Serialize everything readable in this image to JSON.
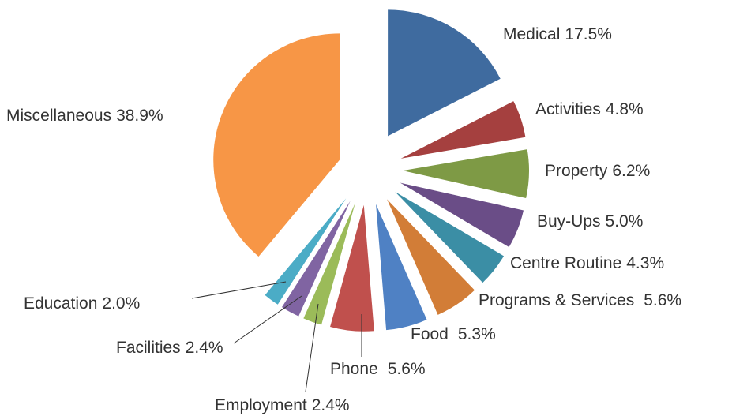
{
  "chart_data": {
    "type": "pie",
    "categories": [
      "Medical",
      "Activities",
      "Property",
      "Buy-Ups",
      "Centre Routine",
      "Programs & Services",
      "Food",
      "Phone",
      "Employment",
      "Facilities",
      "Education",
      "Miscellaneous"
    ],
    "values": [
      17.5,
      4.8,
      6.2,
      5.0,
      4.3,
      5.6,
      5.3,
      5.6,
      2.4,
      2.4,
      2.0,
      38.9
    ],
    "value_labels": [
      "17.5%",
      "4.8%",
      "6.2%",
      "5.0%",
      "4.3%",
      "5.6%",
      "5.3%",
      "5.6%",
      "2.4%",
      "2.4%",
      "2.0%",
      "38.9%"
    ],
    "colors": [
      "#3f6b9f",
      "#a5403f",
      "#7e9a45",
      "#6a4d87",
      "#3b8ea5",
      "#d27d37",
      "#4f81c4",
      "#c0504d",
      "#9bbb59",
      "#8064a2",
      "#4bacc6",
      "#f79646"
    ]
  }
}
